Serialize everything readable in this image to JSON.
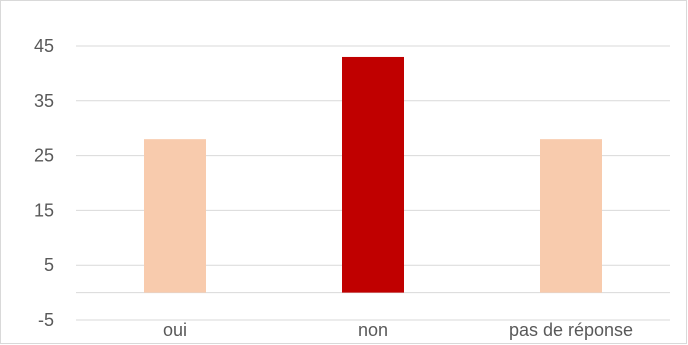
{
  "chart_data": {
    "type": "bar",
    "categories": [
      "oui",
      "non",
      "pas de réponse"
    ],
    "values": [
      28,
      43,
      28
    ],
    "ylim": [
      -5,
      45
    ],
    "yticks": [
      -5,
      5,
      15,
      25,
      35,
      45
    ],
    "bar_colors": [
      "#f8cbad",
      "#c00000",
      "#f8cbad"
    ],
    "grid": true,
    "gridline_color": "#d9d9d9",
    "axis_label_color": "#595959",
    "title": "",
    "xlabel": "",
    "ylabel": ""
  }
}
